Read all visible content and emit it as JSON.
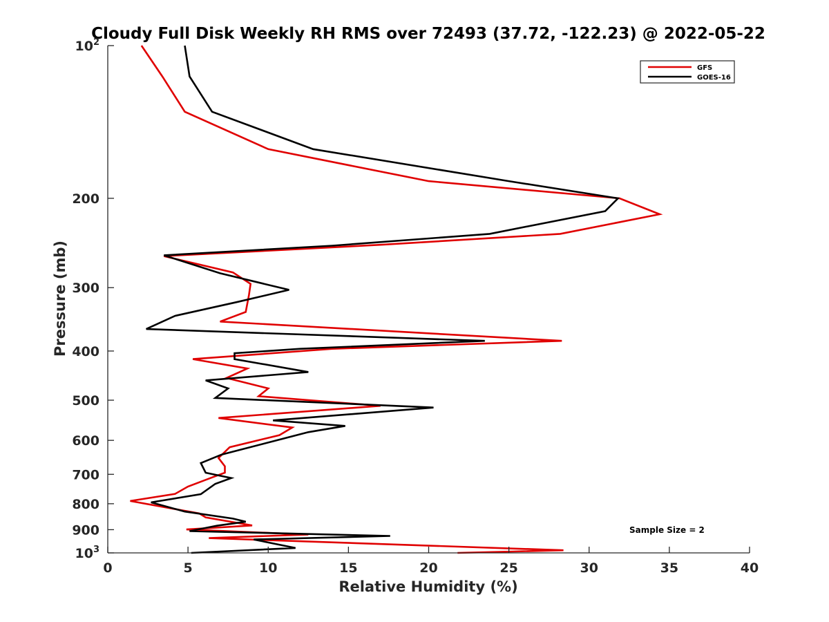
{
  "chart_data": {
    "type": "line",
    "title": "Cloudy Full Disk Weekly RH RMS over 72493 (37.72, -122.23) @ 2022-05-22",
    "xlabel": "Relative Humidity (%)",
    "ylabel": "Pressure (mb)",
    "xlim": [
      0,
      40
    ],
    "ylim": [
      100,
      1000
    ],
    "yscale": "log",
    "y_reversed": true,
    "x_ticks": [
      "0",
      "5",
      "10",
      "15",
      "20",
      "25",
      "30",
      "35",
      "40"
    ],
    "y_ticks": [
      {
        "value": 100,
        "label": "10",
        "sup": "2"
      },
      {
        "value": 200,
        "label": "200",
        "sup": ""
      },
      {
        "value": 300,
        "label": "300",
        "sup": ""
      },
      {
        "value": 400,
        "label": "400",
        "sup": ""
      },
      {
        "value": 500,
        "label": "500",
        "sup": ""
      },
      {
        "value": 600,
        "label": "600",
        "sup": ""
      },
      {
        "value": 700,
        "label": "700",
        "sup": ""
      },
      {
        "value": 800,
        "label": "800",
        "sup": ""
      },
      {
        "value": 900,
        "label": "900",
        "sup": ""
      },
      {
        "value": 1000,
        "label": "10",
        "sup": "3"
      }
    ],
    "legend_position": "top-right",
    "annotation": "Sample Size = 2",
    "series": [
      {
        "name": "GFS",
        "color": "#e00000",
        "points": [
          [
            2.1,
            100
          ],
          [
            3.4,
            115
          ],
          [
            4.8,
            135
          ],
          [
            10,
            160
          ],
          [
            20,
            185
          ],
          [
            31.9,
            200
          ],
          [
            34.4,
            215
          ],
          [
            28.2,
            235
          ],
          [
            17,
            247
          ],
          [
            3.5,
            260
          ],
          [
            7.8,
            280
          ],
          [
            8.9,
            295
          ],
          [
            8.8,
            310
          ],
          [
            8.6,
            335
          ],
          [
            7,
            350
          ],
          [
            28.3,
            382
          ],
          [
            14,
            396
          ],
          [
            5.3,
            415
          ],
          [
            8.7,
            433
          ],
          [
            7.4,
            452
          ],
          [
            10,
            474
          ],
          [
            9.4,
            491
          ],
          [
            17,
            513
          ],
          [
            6.9,
            542
          ],
          [
            11.5,
            566
          ],
          [
            10.7,
            586
          ],
          [
            7.6,
            619
          ],
          [
            6.9,
            650
          ],
          [
            7.3,
            675
          ],
          [
            7.3,
            695
          ],
          [
            6.5,
            710
          ],
          [
            5,
            740
          ],
          [
            4.2,
            765
          ],
          [
            1.4,
            790
          ],
          [
            5.7,
            836
          ],
          [
            6.1,
            851
          ],
          [
            9,
            883
          ],
          [
            4.9,
            899
          ],
          [
            12.5,
            920
          ],
          [
            6.3,
            935
          ],
          [
            28.4,
            988
          ],
          [
            21.8,
            1000
          ]
        ]
      },
      {
        "name": "GOES-16",
        "color": "#000000",
        "points": [
          [
            4.8,
            100
          ],
          [
            5.1,
            115
          ],
          [
            6.5,
            135
          ],
          [
            12.8,
            160
          ],
          [
            25,
            185
          ],
          [
            31.8,
            200
          ],
          [
            31,
            212
          ],
          [
            23.8,
            235
          ],
          [
            14,
            248
          ],
          [
            3.5,
            259
          ],
          [
            7,
            281
          ],
          [
            11.3,
            303
          ],
          [
            8.1,
            320
          ],
          [
            4.2,
            341
          ],
          [
            2.4,
            362
          ],
          [
            23.5,
            382
          ],
          [
            12,
            396
          ],
          [
            7.9,
            404
          ],
          [
            7.9,
            415
          ],
          [
            12.5,
            440
          ],
          [
            6.1,
            457
          ],
          [
            7.5,
            474
          ],
          [
            6.7,
            495
          ],
          [
            20.3,
            517
          ],
          [
            10.3,
            548
          ],
          [
            14.8,
            562
          ],
          [
            12.5,
            578
          ],
          [
            7.1,
            640
          ],
          [
            5.8,
            665
          ],
          [
            6.1,
            695
          ],
          [
            7.7,
            712
          ],
          [
            6.7,
            731
          ],
          [
            5.8,
            766
          ],
          [
            2.7,
            795
          ],
          [
            4.8,
            829
          ],
          [
            7.8,
            856
          ],
          [
            8.6,
            868
          ],
          [
            6.8,
            884
          ],
          [
            5.1,
            906
          ],
          [
            17.6,
            926
          ],
          [
            9.1,
            941
          ],
          [
            11.7,
            978
          ],
          [
            5.2,
            1000
          ]
        ]
      }
    ]
  }
}
